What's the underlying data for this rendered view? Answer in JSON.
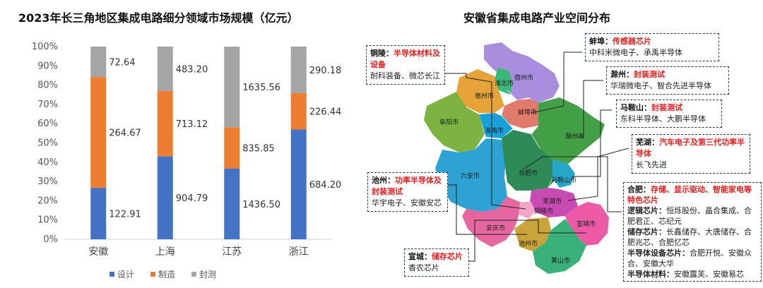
{
  "chart_data": {
    "type": "bar",
    "stacked": "percent",
    "title": "2023年长三角地区集成电路细分领域市场规模（亿元）",
    "categories": [
      "安徽",
      "上海",
      "江苏",
      "浙江"
    ],
    "series": [
      {
        "name": "设计",
        "color": "#4472c4",
        "values": [
          122.91,
          904.79,
          1436.5,
          684.2
        ]
      },
      {
        "name": "制造",
        "color": "#ed7d31",
        "values": [
          264.67,
          713.12,
          835.85,
          226.44
        ]
      },
      {
        "name": "封测",
        "color": "#a5a5a5",
        "values": [
          72.64,
          483.2,
          1635.56,
          290.18
        ]
      }
    ],
    "value_labels": [
      [
        "122.91",
        "904.79",
        "1436.50",
        "684.20"
      ],
      [
        "264.67",
        "713.12",
        "835.85",
        "226.44"
      ],
      [
        "72.64",
        "483.20",
        "1635.56",
        "290.18"
      ]
    ],
    "yticks": [
      "0%",
      "10%",
      "20%",
      "30%",
      "40%",
      "50%",
      "60%",
      "70%",
      "80%",
      "90%",
      "100%"
    ],
    "ylim": [
      0,
      100
    ],
    "xlabel": "",
    "ylabel": "",
    "legend_position": "bottom",
    "grid": false
  },
  "map": {
    "title": "安徽省集成电路产业空间分布",
    "city_labels": [
      "宿州市",
      "淮北市",
      "亳州市",
      "蚌埠市",
      "阜阳市",
      "淮南市",
      "滁州市",
      "六安市",
      "合肥市",
      "马鞍山市",
      "芜湖市",
      "铜陵市",
      "宣城市",
      "安庆市",
      "池州市",
      "黄山市"
    ],
    "callouts": [
      {
        "id": "bengbu",
        "city": "蚌埠：",
        "focus": "传感器芯片",
        "lines": [
          "中科米微电子、承禹半导体"
        ]
      },
      {
        "id": "tongling",
        "city": "铜陵：",
        "focus": "半导体材料及设备",
        "lines": [
          "耐科装备、微芯长江"
        ]
      },
      {
        "id": "chuzhou",
        "city": "滁州：",
        "focus": "封装测试",
        "lines": [
          "华瑞微电子、智合先进半导体"
        ]
      },
      {
        "id": "maanshan",
        "city": "马鞍山：",
        "focus": "封装测试",
        "lines": [
          "东科半导体、大鹏半导体"
        ]
      },
      {
        "id": "wuhu",
        "city": "芜湖：",
        "focus": "汽车电子及第三代功率半导体",
        "lines": [
          "长飞先进"
        ]
      },
      {
        "id": "chizhou",
        "city": "池州：",
        "focus": "功率半导体及封装测试",
        "lines": [
          "华宇电子、安徽安芯"
        ]
      },
      {
        "id": "hefei",
        "city": "合肥：",
        "focus": "存储、显示驱动、智能家电等特色芯片",
        "sublines": [
          {
            "label": "逻辑芯片：",
            "text": "恒烁股份、晶合集成、合肥君正、芯纪元"
          },
          {
            "label": "储存芯片：",
            "text": "长鑫储存、大唐储存、合肥兆芯、合肥忆芯"
          },
          {
            "label": "半导体设备芯片：",
            "text": "合肥开悦、安徽众合、安徽大华"
          },
          {
            "label": "半导体材料：",
            "text": "安徽露芙、安徽易芯"
          }
        ]
      },
      {
        "id": "xuancheng",
        "city": "宣城：",
        "focus": "储存芯片",
        "lines": [
          "香农芯片"
        ]
      }
    ]
  }
}
